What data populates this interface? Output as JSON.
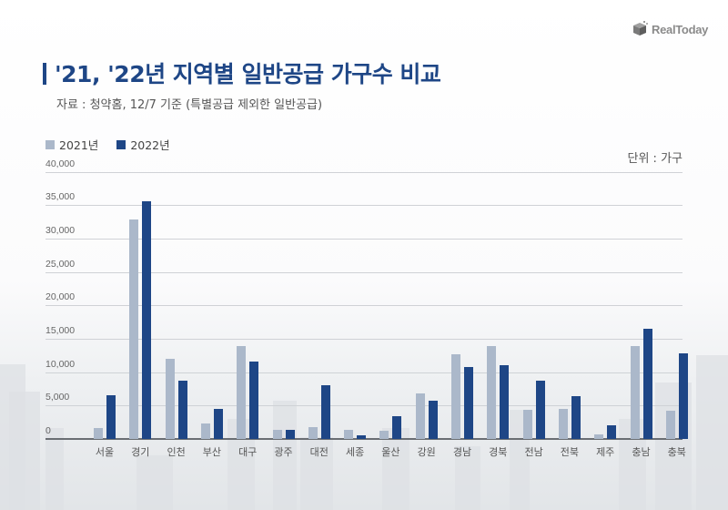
{
  "header": {
    "title": "'21, '22년 지역별 일반공급 가구수 비교",
    "subtitle": "자료 : 청약홈, 12/7 기준 (특별공급 제외한 일반공급)",
    "unit_label": "단위 : 가구",
    "logo_text": "RealToday"
  },
  "colors": {
    "series_2021": "#abb8ca",
    "series_2022": "#1e4686",
    "title": "#1e4686"
  },
  "chart_data": {
    "type": "bar",
    "title": "'21, '22년 지역별 일반공급 가구수 비교",
    "subtitle": "자료 : 청약홈, 12/7 기준 (특별공급 제외한 일반공급)",
    "xlabel": "",
    "ylabel": "단위 : 가구",
    "ylim": [
      0,
      40000
    ],
    "yticks": [
      0,
      5000,
      10000,
      15000,
      20000,
      25000,
      30000,
      35000,
      40000
    ],
    "ytick_labels": [
      "0",
      "5,000",
      "10,000",
      "15,000",
      "20,000",
      "25,000",
      "30,000",
      "35,000",
      "40,000"
    ],
    "grid": true,
    "legend_position": "top-left",
    "categories": [
      "서울",
      "경기",
      "인천",
      "부산",
      "대구",
      "광주",
      "대전",
      "세종",
      "울산",
      "강원",
      "경남",
      "경북",
      "전남",
      "전북",
      "제주",
      "충남",
      "충북"
    ],
    "series": [
      {
        "name": "2021년",
        "color": "#abb8ca",
        "values": [
          1700,
          32900,
          12000,
          2300,
          13950,
          1300,
          1800,
          1300,
          1200,
          6750,
          12700,
          13950,
          4350,
          4450,
          650,
          13900,
          4250
        ]
      },
      {
        "name": "2022년",
        "color": "#1e4686",
        "values": [
          6600,
          35550,
          8700,
          4450,
          11600,
          1300,
          8050,
          550,
          3350,
          5750,
          10700,
          11000,
          8750,
          6400,
          2100,
          16500,
          12750
        ]
      }
    ]
  }
}
